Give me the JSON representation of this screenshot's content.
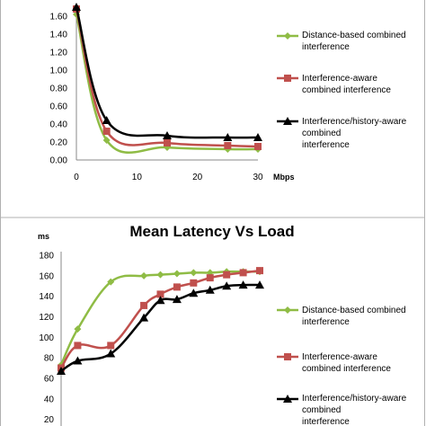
{
  "chart_data": [
    {
      "type": "line",
      "title": "",
      "xlabel": "Mbps",
      "ylabel": "",
      "x_ticks": [
        "0",
        "10",
        "20",
        "30"
      ],
      "y_ticks": [
        "0.00",
        "0.20",
        "0.40",
        "0.60",
        "0.80",
        "1.00",
        "1.20",
        "1.40",
        "1.60"
      ],
      "xlim": [
        0,
        30
      ],
      "ylim": [
        0,
        1.7
      ],
      "grid": false,
      "legend_position": "right",
      "series": [
        {
          "name": "Distance-based combined interference",
          "color": "#8fbc45",
          "marker": "diamond",
          "x": [
            0,
            5,
            15,
            25,
            30
          ],
          "y": [
            1.62,
            0.22,
            0.14,
            0.12,
            0.12
          ]
        },
        {
          "name": "Interference-aware combined interference",
          "color": "#c0504d",
          "marker": "square",
          "x": [
            0,
            5,
            15,
            25,
            30
          ],
          "y": [
            1.68,
            0.32,
            0.19,
            0.16,
            0.15
          ]
        },
        {
          "name": "Interference/history-aware combined interference",
          "color": "#000000",
          "marker": "triangle",
          "x": [
            0,
            5,
            15,
            25,
            30
          ],
          "y": [
            1.7,
            0.44,
            0.27,
            0.25,
            0.25
          ]
        }
      ]
    },
    {
      "type": "line",
      "title": "Mean Latency Vs Load",
      "xlabel": "",
      "ylabel": "ms",
      "x_ticks": [],
      "y_ticks": [
        "20",
        "40",
        "60",
        "80",
        "100",
        "120",
        "140",
        "160",
        "180"
      ],
      "xlim": [
        0,
        30
      ],
      "ylim": [
        10,
        180
      ],
      "grid": false,
      "legend_position": "right",
      "series": [
        {
          "name": "Distance-based combined interference",
          "color": "#8fbc45",
          "marker": "diamond",
          "x": [
            0,
            2.5,
            7.5,
            12.5,
            15,
            17.5,
            20,
            22.5,
            25,
            27.5,
            30
          ],
          "y": [
            73,
            108,
            154,
            160,
            161,
            162,
            163,
            163,
            164,
            164,
            164
          ]
        },
        {
          "name": "Interference-aware combined interference",
          "color": "#c0504d",
          "marker": "square",
          "x": [
            0,
            2.5,
            7.5,
            12.5,
            15,
            17.5,
            20,
            22.5,
            25,
            27.5,
            30
          ],
          "y": [
            70,
            92,
            92,
            131,
            142,
            149,
            153,
            158,
            161,
            163,
            165
          ]
        },
        {
          "name": "Interference/history-aware combined interference",
          "color": "#000000",
          "marker": "triangle",
          "x": [
            0,
            2.5,
            7.5,
            12.5,
            15,
            17.5,
            20,
            22.5,
            25,
            27.5,
            30
          ],
          "y": [
            67,
            77,
            84,
            119,
            136,
            137,
            143,
            146,
            150,
            151,
            151
          ]
        }
      ]
    }
  ]
}
